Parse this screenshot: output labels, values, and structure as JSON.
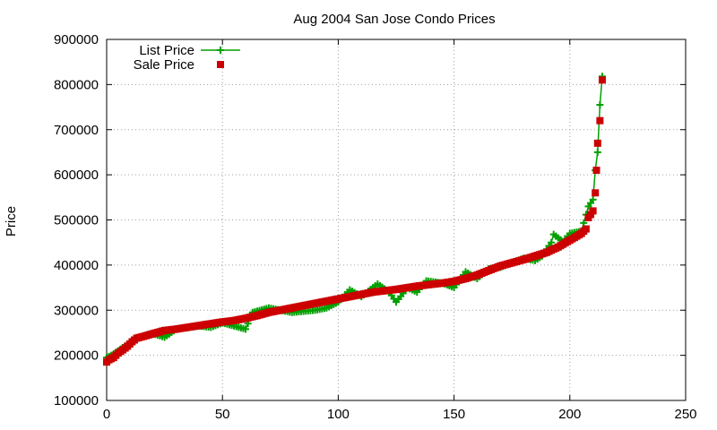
{
  "chart_data": {
    "type": "scatter",
    "title": "Aug 2004 San Jose Condo Prices",
    "xlabel": "",
    "ylabel": "Price",
    "xlim": [
      0,
      250
    ],
    "ylim": [
      100000,
      900000
    ],
    "xticks": [
      0,
      50,
      100,
      150,
      200,
      250
    ],
    "yticks": [
      100000,
      200000,
      300000,
      400000,
      500000,
      600000,
      700000,
      800000,
      900000
    ],
    "grid": true,
    "legend_position": "top-left",
    "series": [
      {
        "name": "List Price",
        "style": "line-with-plus-markers",
        "color": "#00a000",
        "points": [
          [
            0,
            195000
          ],
          [
            2,
            200000
          ],
          [
            5,
            210000
          ],
          [
            10,
            228000
          ],
          [
            12,
            236000
          ],
          [
            20,
            248000
          ],
          [
            25,
            240000
          ],
          [
            30,
            258000
          ],
          [
            40,
            265000
          ],
          [
            45,
            262000
          ],
          [
            50,
            272000
          ],
          [
            60,
            258000
          ],
          [
            63,
            295000
          ],
          [
            70,
            305000
          ],
          [
            80,
            295000
          ],
          [
            90,
            300000
          ],
          [
            95,
            305000
          ],
          [
            100,
            318000
          ],
          [
            105,
            345000
          ],
          [
            110,
            330000
          ],
          [
            117,
            358000
          ],
          [
            122,
            340000
          ],
          [
            125,
            318000
          ],
          [
            130,
            350000
          ],
          [
            134,
            340000
          ],
          [
            138,
            365000
          ],
          [
            145,
            360000
          ],
          [
            150,
            350000
          ],
          [
            155,
            385000
          ],
          [
            160,
            370000
          ],
          [
            165,
            392000
          ],
          [
            170,
            395000
          ],
          [
            175,
            405000
          ],
          [
            180,
            415000
          ],
          [
            185,
            410000
          ],
          [
            188,
            420000
          ],
          [
            192,
            450000
          ],
          [
            193,
            468000
          ],
          [
            197,
            452000
          ],
          [
            200,
            470000
          ],
          [
            205,
            475000
          ],
          [
            208,
            530000
          ],
          [
            210,
            545000
          ],
          [
            211,
            610000
          ],
          [
            212,
            650000
          ],
          [
            213,
            755000
          ],
          [
            214,
            818000
          ]
        ]
      },
      {
        "name": "Sale Price",
        "style": "square-markers",
        "color": "#cc0000",
        "points": [
          [
            0,
            185000
          ],
          [
            1,
            190000
          ],
          [
            3,
            195000
          ],
          [
            5,
            205000
          ],
          [
            7,
            212000
          ],
          [
            9,
            220000
          ],
          [
            11,
            230000
          ],
          [
            13,
            238000
          ],
          [
            16,
            242000
          ],
          [
            20,
            248000
          ],
          [
            25,
            255000
          ],
          [
            30,
            258000
          ],
          [
            35,
            262000
          ],
          [
            40,
            266000
          ],
          [
            45,
            270000
          ],
          [
            50,
            274000
          ],
          [
            55,
            277000
          ],
          [
            60,
            282000
          ],
          [
            65,
            288000
          ],
          [
            70,
            295000
          ],
          [
            75,
            300000
          ],
          [
            80,
            305000
          ],
          [
            85,
            310000
          ],
          [
            90,
            315000
          ],
          [
            95,
            320000
          ],
          [
            100,
            325000
          ],
          [
            105,
            330000
          ],
          [
            110,
            335000
          ],
          [
            115,
            340000
          ],
          [
            120,
            343000
          ],
          [
            125,
            346000
          ],
          [
            130,
            350000
          ],
          [
            135,
            354000
          ],
          [
            140,
            357000
          ],
          [
            145,
            360000
          ],
          [
            150,
            364000
          ],
          [
            155,
            370000
          ],
          [
            160,
            378000
          ],
          [
            165,
            388000
          ],
          [
            170,
            398000
          ],
          [
            175,
            405000
          ],
          [
            180,
            412000
          ],
          [
            185,
            420000
          ],
          [
            190,
            428000
          ],
          [
            195,
            440000
          ],
          [
            200,
            455000
          ],
          [
            205,
            470000
          ],
          [
            207,
            480000
          ],
          [
            208,
            505000
          ],
          [
            209,
            512000
          ],
          [
            210,
            520000
          ],
          [
            211,
            560000
          ],
          [
            211.5,
            610000
          ],
          [
            212,
            670000
          ],
          [
            213,
            720000
          ],
          [
            214,
            810000
          ]
        ]
      }
    ]
  }
}
